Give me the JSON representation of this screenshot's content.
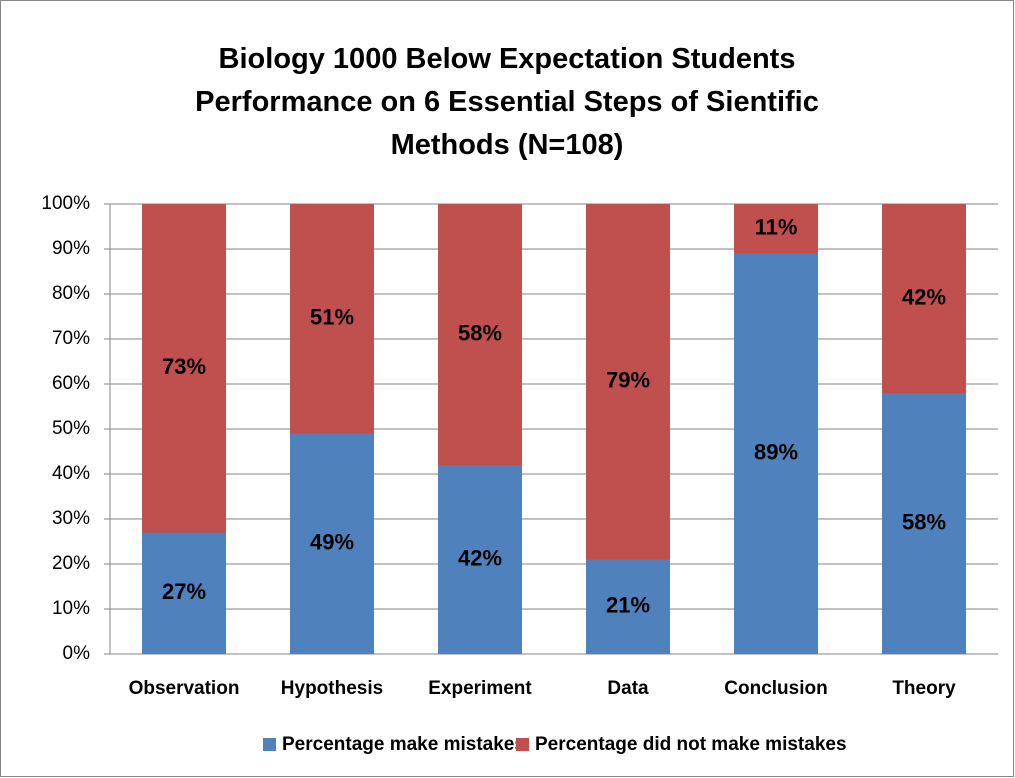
{
  "chart_data": {
    "type": "stacked_bar",
    "title": "Biology 1000 Below Expectation Students Performance on 6 Essential Steps of Sientific Methods (N=108)",
    "categories": [
      "Observation",
      "Hypothesis",
      "Experiment",
      "Data",
      "Conclusion",
      "Theory"
    ],
    "series": [
      {
        "name": "Percentage make mistakes",
        "color": "#4f81bd",
        "values": [
          27,
          49,
          42,
          21,
          89,
          58
        ],
        "value_labels": [
          "27%",
          "49%",
          "42%",
          "21%",
          "89%",
          "58%"
        ]
      },
      {
        "name": "Percentage did not make mistakes",
        "color": "#c0504d",
        "values": [
          73,
          51,
          58,
          79,
          11,
          42
        ],
        "value_labels": [
          "73%",
          "51%",
          "58%",
          "79%",
          "11%",
          "42%"
        ]
      }
    ],
    "ylim": [
      0,
      100
    ],
    "yticks": [
      {
        "value": 0,
        "label": "0%"
      },
      {
        "value": 10,
        "label": "10%"
      },
      {
        "value": 20,
        "label": "20%"
      },
      {
        "value": 30,
        "label": "30%"
      },
      {
        "value": 40,
        "label": "40%"
      },
      {
        "value": 50,
        "label": "50%"
      },
      {
        "value": 60,
        "label": "60%"
      },
      {
        "value": 70,
        "label": "70%"
      },
      {
        "value": 80,
        "label": "80%"
      },
      {
        "value": 90,
        "label": "90%"
      },
      {
        "value": 100,
        "label": "100%"
      }
    ],
    "grid": true,
    "legend": "bottom"
  }
}
